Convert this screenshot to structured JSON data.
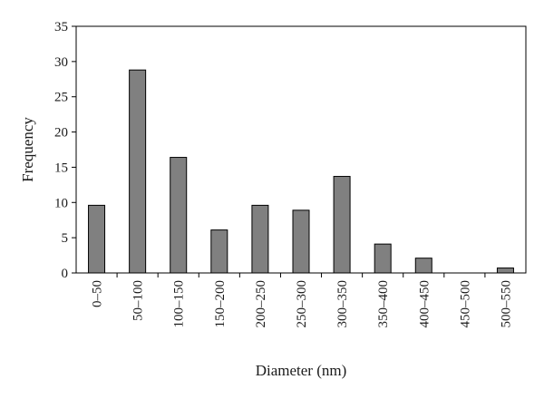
{
  "chart_data": {
    "type": "bar",
    "title": "",
    "xlabel": "Diameter (nm)",
    "ylabel": "Frequency",
    "ylim": [
      0,
      35
    ],
    "yticks": [
      0,
      5,
      10,
      15,
      20,
      25,
      30,
      35
    ],
    "grid": false,
    "legend": "none",
    "categories": [
      "0–50",
      "50–100",
      "100–150",
      "150–200",
      "200–250",
      "250–300",
      "300–350",
      "350–400",
      "400–450",
      "450–500",
      "500–550"
    ],
    "values": [
      9.6,
      28.8,
      16.4,
      6.1,
      9.6,
      8.9,
      13.7,
      4.1,
      2.1,
      0,
      0.7
    ],
    "bar_color": "#808080",
    "bar_edge_color": "#000000"
  }
}
